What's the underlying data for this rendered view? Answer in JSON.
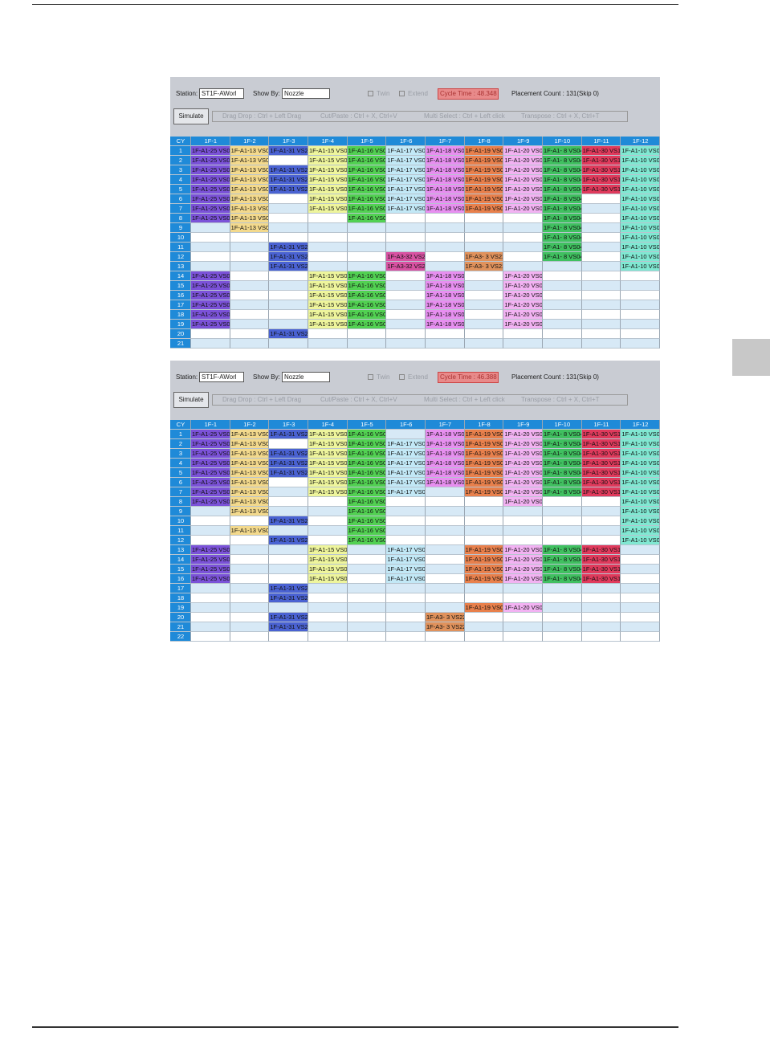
{
  "cell_colors": {
    "1F-A1-25 VS0(": "#7b52d8",
    "1F-A1-13 VS04": "#f3d98c",
    "1F-A1-31 VS2": "#4a62d2",
    "1F-A1-15 VS0(": "#eef59c",
    "1F-A1-16 VS0(": "#52d152",
    "1F-A1-17 VS0(": "#c2e8f6",
    "1F-A1-18 VS0(": "#e78ff0",
    "1F-A1-19 VS0(": "#e8804c",
    "1F-A1-20 VS0(": "#f2b2f2",
    "1F-A1- 8 VS04": "#40c060",
    "1F-A1-30 VS1": "#e03a5c",
    "1F-A1-10 VS0": "#80e8d2",
    "1F-A3-32 VS2": "#d852a2",
    "1F-A3- 3 VS22": "#e0925c"
  },
  "panels": [
    {
      "toolbar": {
        "station_label": "Station:",
        "station_value": "ST1F-AWorl",
        "show_by_label": "Show By:",
        "show_by_value": "Nozzle",
        "twin": "Twin",
        "extend": "Extend",
        "cycle_time": "Cycle Time : 48.348",
        "placement_count": "Placement Count : 131(Skip 0)",
        "simulate": "Simulate",
        "hints": [
          "Drag Drop : Ctrl + Left Drag",
          "Cut/Paste : Ctrl + X, Ctrl+V",
          "Multi Select : Ctrl + Left click",
          "Transpose : Ctrl + X, Ctrl+T"
        ]
      },
      "columns": [
        "CY",
        "1F-1",
        "1F-2",
        "1F-3",
        "1F-4",
        "1F-5",
        "1F-6",
        "1F-7",
        "1F-8",
        "1F-9",
        "1F-10",
        "1F-11",
        "1F-12"
      ],
      "rows": [
        {
          "cy": 1,
          "cells": [
            "1F-A1-25 VS0(",
            "1F-A1-13 VS04",
            "1F-A1-31 VS2",
            "1F-A1-15 VS0(",
            "1F-A1-16 VS0(",
            "1F-A1-17 VS0(",
            "1F-A1-18 VS0(",
            "1F-A1-19 VS0(",
            "1F-A1-20 VS0(",
            "1F-A1- 8 VS04",
            "1F-A1-30 VS1",
            "1F-A1-10 VS0"
          ]
        },
        {
          "cy": 2,
          "cells": [
            "1F-A1-25 VS0(",
            "1F-A1-13 VS04",
            null,
            "1F-A1-15 VS0(",
            "1F-A1-16 VS0(",
            "1F-A1-17 VS0(",
            "1F-A1-18 VS0(",
            "1F-A1-19 VS0(",
            "1F-A1-20 VS0(",
            "1F-A1- 8 VS04",
            "1F-A1-30 VS1",
            "1F-A1-10 VS0"
          ]
        },
        {
          "cy": 3,
          "cells": [
            "1F-A1-25 VS0(",
            "1F-A1-13 VS04",
            "1F-A1-31 VS2",
            "1F-A1-15 VS0(",
            "1F-A1-16 VS0(",
            "1F-A1-17 VS0(",
            "1F-A1-18 VS0(",
            "1F-A1-19 VS0(",
            "1F-A1-20 VS0(",
            "1F-A1- 8 VS04",
            "1F-A1-30 VS1",
            "1F-A1-10 VS0"
          ]
        },
        {
          "cy": 4,
          "cells": [
            "1F-A1-25 VS0(",
            "1F-A1-13 VS04",
            "1F-A1-31 VS2",
            "1F-A1-15 VS0(",
            "1F-A1-16 VS0(",
            "1F-A1-17 VS0(",
            "1F-A1-18 VS0(",
            "1F-A1-19 VS0(",
            "1F-A1-20 VS0(",
            "1F-A1- 8 VS04",
            "1F-A1-30 VS1",
            "1F-A1-10 VS0"
          ]
        },
        {
          "cy": 5,
          "cells": [
            "1F-A1-25 VS0(",
            "1F-A1-13 VS04",
            "1F-A1-31 VS2",
            "1F-A1-15 VS0(",
            "1F-A1-16 VS0(",
            "1F-A1-17 VS0(",
            "1F-A1-18 VS0(",
            "1F-A1-19 VS0(",
            "1F-A1-20 VS0(",
            "1F-A1- 8 VS04",
            "1F-A1-30 VS1",
            "1F-A1-10 VS0"
          ]
        },
        {
          "cy": 6,
          "cells": [
            "1F-A1-25 VS0(",
            "1F-A1-13 VS04",
            null,
            "1F-A1-15 VS0(",
            "1F-A1-16 VS0(",
            "1F-A1-17 VS0(",
            "1F-A1-18 VS0(",
            "1F-A1-19 VS0(",
            "1F-A1-20 VS0(",
            "1F-A1- 8 VS04",
            null,
            "1F-A1-10 VS0"
          ]
        },
        {
          "cy": 7,
          "cells": [
            "1F-A1-25 VS0(",
            "1F-A1-13 VS04",
            null,
            "1F-A1-15 VS0(",
            "1F-A1-16 VS0(",
            "1F-A1-17 VS0(",
            "1F-A1-18 VS0(",
            "1F-A1-19 VS0(",
            "1F-A1-20 VS0(",
            "1F-A1- 8 VS04",
            null,
            "1F-A1-10 VS0"
          ]
        },
        {
          "cy": 8,
          "cells": [
            "1F-A1-25 VS0(",
            "1F-A1-13 VS04",
            null,
            null,
            "1F-A1-16 VS0(",
            null,
            null,
            null,
            null,
            "1F-A1- 8 VS04",
            null,
            "1F-A1-10 VS0"
          ]
        },
        {
          "cy": 9,
          "cells": [
            null,
            "1F-A1-13 VS04",
            null,
            null,
            null,
            null,
            null,
            null,
            null,
            "1F-A1- 8 VS04",
            null,
            "1F-A1-10 VS0"
          ]
        },
        {
          "cy": 10,
          "cells": [
            null,
            null,
            null,
            null,
            null,
            null,
            null,
            null,
            null,
            "1F-A1- 8 VS04",
            null,
            "1F-A1-10 VS0"
          ]
        },
        {
          "cy": 11,
          "cells": [
            null,
            null,
            "1F-A1-31 VS2",
            null,
            null,
            null,
            null,
            null,
            null,
            "1F-A1- 8 VS04",
            null,
            "1F-A1-10 VS0"
          ]
        },
        {
          "cy": 12,
          "cells": [
            null,
            null,
            "1F-A1-31 VS2",
            null,
            null,
            "1F-A3-32 VS2",
            null,
            "1F-A3- 3 VS22",
            null,
            "1F-A1- 8 VS04",
            null,
            "1F-A1-10 VS0"
          ]
        },
        {
          "cy": 13,
          "cells": [
            null,
            null,
            "1F-A1-31 VS2",
            null,
            null,
            "1F-A3-32 VS2",
            null,
            "1F-A3- 3 VS22",
            null,
            null,
            null,
            "1F-A1-10 VS0"
          ]
        },
        {
          "cy": 14,
          "cells": [
            "1F-A1-25 VS0(",
            null,
            null,
            "1F-A1-15 VS0(",
            "1F-A1-16 VS0(",
            null,
            "1F-A1-18 VS0(",
            null,
            "1F-A1-20 VS0(",
            null,
            null,
            null
          ]
        },
        {
          "cy": 15,
          "cells": [
            "1F-A1-25 VS0(",
            null,
            null,
            "1F-A1-15 VS0(",
            "1F-A1-16 VS0(",
            null,
            "1F-A1-18 VS0(",
            null,
            "1F-A1-20 VS0(",
            null,
            null,
            null
          ]
        },
        {
          "cy": 16,
          "cells": [
            "1F-A1-25 VS0(",
            null,
            null,
            "1F-A1-15 VS0(",
            "1F-A1-16 VS0(",
            null,
            "1F-A1-18 VS0(",
            null,
            "1F-A1-20 VS0(",
            null,
            null,
            null
          ]
        },
        {
          "cy": 17,
          "cells": [
            "1F-A1-25 VS0(",
            null,
            null,
            "1F-A1-15 VS0(",
            "1F-A1-16 VS0(",
            null,
            "1F-A1-18 VS0(",
            null,
            "1F-A1-20 VS0(",
            null,
            null,
            null
          ]
        },
        {
          "cy": 18,
          "cells": [
            "1F-A1-25 VS0(",
            null,
            null,
            "1F-A1-15 VS0(",
            "1F-A1-16 VS0(",
            null,
            "1F-A1-18 VS0(",
            null,
            "1F-A1-20 VS0(",
            null,
            null,
            null
          ]
        },
        {
          "cy": 19,
          "cells": [
            "1F-A1-25 VS0(",
            null,
            null,
            "1F-A1-15 VS0(",
            "1F-A1-16 VS0(",
            null,
            "1F-A1-18 VS0(",
            null,
            "1F-A1-20 VS0(",
            null,
            null,
            null
          ]
        },
        {
          "cy": 20,
          "cells": [
            null,
            null,
            "1F-A1-31 VS2",
            null,
            null,
            null,
            null,
            null,
            null,
            null,
            null,
            null
          ]
        },
        {
          "cy": 21,
          "cells": [
            null,
            null,
            null,
            null,
            null,
            null,
            null,
            null,
            null,
            null,
            null,
            null
          ]
        }
      ]
    },
    {
      "toolbar": {
        "station_label": "Station:",
        "station_value": "ST1F-AWorl",
        "show_by_label": "Show By:",
        "show_by_value": "Nozzle",
        "twin": "Twin",
        "extend": "Extend",
        "cycle_time": "Cycle Time : 46.388",
        "placement_count": "Placement Count : 131(Skip 0)",
        "simulate": "Simulate",
        "hints": [
          "Drag Drop : Ctrl + Left Drag",
          "Cut/Paste : Ctrl + X, Ctrl+V",
          "Multi Select : Ctrl + Left click",
          "Transpose : Ctrl + X, Ctrl+T"
        ]
      },
      "columns": [
        "CY",
        "1F-1",
        "1F-2",
        "1F-3",
        "1F-4",
        "1F-5",
        "1F-6",
        "1F-7",
        "1F-8",
        "1F-9",
        "1F-10",
        "1F-11",
        "1F-12"
      ],
      "rows": [
        {
          "cy": 1,
          "cells": [
            "1F-A1-25 VS0(",
            "1F-A1-13 VS04",
            "1F-A1-31 VS2",
            "1F-A1-15 VS0(",
            "1F-A1-16 VS0(",
            null,
            "1F-A1-18 VS0(",
            "1F-A1-19 VS0(",
            "1F-A1-20 VS0(",
            "1F-A1- 8 VS04",
            "1F-A1-30 VS1",
            "1F-A1-10 VS0"
          ]
        },
        {
          "cy": 2,
          "cells": [
            "1F-A1-25 VS0(",
            "1F-A1-13 VS04",
            null,
            "1F-A1-15 VS0(",
            "1F-A1-16 VS0(",
            "1F-A1-17 VS0(",
            "1F-A1-18 VS0(",
            "1F-A1-19 VS0(",
            "1F-A1-20 VS0(",
            "1F-A1- 8 VS04",
            "1F-A1-30 VS1",
            "1F-A1-10 VS0"
          ]
        },
        {
          "cy": 3,
          "cells": [
            "1F-A1-25 VS0(",
            "1F-A1-13 VS04",
            "1F-A1-31 VS2",
            "1F-A1-15 VS0(",
            "1F-A1-16 VS0(",
            "1F-A1-17 VS0(",
            "1F-A1-18 VS0(",
            "1F-A1-19 VS0(",
            "1F-A1-20 VS0(",
            "1F-A1- 8 VS04",
            "1F-A1-30 VS1",
            "1F-A1-10 VS0"
          ]
        },
        {
          "cy": 4,
          "cells": [
            "1F-A1-25 VS0(",
            "1F-A1-13 VS04",
            "1F-A1-31 VS2",
            "1F-A1-15 VS0(",
            "1F-A1-16 VS0(",
            "1F-A1-17 VS0(",
            "1F-A1-18 VS0(",
            "1F-A1-19 VS0(",
            "1F-A1-20 VS0(",
            "1F-A1- 8 VS04",
            "1F-A1-30 VS1",
            "1F-A1-10 VS0"
          ]
        },
        {
          "cy": 5,
          "cells": [
            "1F-A1-25 VS0(",
            "1F-A1-13 VS04",
            "1F-A1-31 VS2",
            "1F-A1-15 VS0(",
            "1F-A1-16 VS0(",
            "1F-A1-17 VS0(",
            "1F-A1-18 VS0(",
            "1F-A1-19 VS0(",
            "1F-A1-20 VS0(",
            "1F-A1- 8 VS04",
            "1F-A1-30 VS1",
            "1F-A1-10 VS0"
          ]
        },
        {
          "cy": 6,
          "cells": [
            "1F-A1-25 VS0(",
            "1F-A1-13 VS04",
            null,
            "1F-A1-15 VS0(",
            "1F-A1-16 VS0(",
            "1F-A1-17 VS0(",
            "1F-A1-18 VS0(",
            "1F-A1-19 VS0(",
            "1F-A1-20 VS0(",
            "1F-A1- 8 VS04",
            "1F-A1-30 VS1",
            "1F-A1-10 VS0"
          ]
        },
        {
          "cy": 7,
          "cells": [
            "1F-A1-25 VS0(",
            "1F-A1-13 VS04",
            null,
            "1F-A1-15 VS0(",
            "1F-A1-16 VS0(",
            "1F-A1-17 VS0(",
            null,
            "1F-A1-19 VS0(",
            "1F-A1-20 VS0(",
            "1F-A1- 8 VS04",
            "1F-A1-30 VS1",
            "1F-A1-10 VS0"
          ]
        },
        {
          "cy": 8,
          "cells": [
            "1F-A1-25 VS0(",
            "1F-A1-13 VS04",
            null,
            null,
            "1F-A1-16 VS0(",
            null,
            null,
            null,
            "1F-A1-20 VS0(",
            null,
            null,
            "1F-A1-10 VS0"
          ]
        },
        {
          "cy": 9,
          "cells": [
            null,
            "1F-A1-13 VS04",
            null,
            null,
            "1F-A1-16 VS0(",
            null,
            null,
            null,
            null,
            null,
            null,
            "1F-A1-10 VS0"
          ]
        },
        {
          "cy": 10,
          "cells": [
            null,
            null,
            "1F-A1-31 VS2",
            null,
            "1F-A1-16 VS0(",
            null,
            null,
            null,
            null,
            null,
            null,
            "1F-A1-10 VS0"
          ]
        },
        {
          "cy": 11,
          "cells": [
            null,
            "1F-A1-13 VS04",
            null,
            null,
            "1F-A1-16 VS0(",
            null,
            null,
            null,
            null,
            null,
            null,
            "1F-A1-10 VS0"
          ]
        },
        {
          "cy": 12,
          "cells": [
            null,
            null,
            "1F-A1-31 VS2",
            null,
            "1F-A1-16 VS0(",
            null,
            null,
            null,
            null,
            null,
            null,
            "1F-A1-10 VS0"
          ]
        },
        {
          "cy": 13,
          "cells": [
            "1F-A1-25 VS0(",
            null,
            null,
            "1F-A1-15 VS0(",
            null,
            "1F-A1-17 VS0(",
            null,
            "1F-A1-19 VS0(",
            "1F-A1-20 VS0(",
            "1F-A1- 8 VS04",
            "1F-A1-30 VS1",
            null
          ]
        },
        {
          "cy": 14,
          "cells": [
            "1F-A1-25 VS0(",
            null,
            null,
            "1F-A1-15 VS0(",
            null,
            "1F-A1-17 VS0(",
            null,
            "1F-A1-19 VS0(",
            "1F-A1-20 VS0(",
            "1F-A1- 8 VS04",
            "1F-A1-30 VS1",
            null
          ]
        },
        {
          "cy": 15,
          "cells": [
            "1F-A1-25 VS0(",
            null,
            null,
            "1F-A1-15 VS0(",
            null,
            "1F-A1-17 VS0(",
            null,
            "1F-A1-19 VS0(",
            "1F-A1-20 VS0(",
            "1F-A1- 8 VS04",
            "1F-A1-30 VS1",
            null
          ]
        },
        {
          "cy": 16,
          "cells": [
            "1F-A1-25 VS0(",
            null,
            null,
            "1F-A1-15 VS0(",
            null,
            "1F-A1-17 VS0(",
            null,
            "1F-A1-19 VS0(",
            "1F-A1-20 VS0(",
            "1F-A1- 8 VS04",
            "1F-A1-30 VS1",
            null
          ]
        },
        {
          "cy": 17,
          "cells": [
            null,
            null,
            "1F-A1-31 VS2",
            null,
            null,
            null,
            null,
            null,
            null,
            null,
            null,
            null
          ]
        },
        {
          "cy": 18,
          "cells": [
            null,
            null,
            "1F-A1-31 VS2",
            null,
            null,
            null,
            null,
            null,
            null,
            null,
            null,
            null
          ]
        },
        {
          "cy": 19,
          "cells": [
            null,
            null,
            null,
            null,
            null,
            null,
            null,
            "1F-A1-19 VS0(",
            "1F-A1-20 VS0(",
            null,
            null,
            null
          ]
        },
        {
          "cy": 20,
          "cells": [
            null,
            null,
            "1F-A1-31 VS2",
            null,
            null,
            null,
            "1F-A3- 3 VS22",
            null,
            null,
            null,
            null,
            null
          ]
        },
        {
          "cy": 21,
          "cells": [
            null,
            null,
            "1F-A1-31 VS2",
            null,
            null,
            null,
            "1F-A3- 3 VS22",
            null,
            null,
            null,
            null,
            null
          ]
        },
        {
          "cy": 22,
          "cells": [
            null,
            null,
            null,
            null,
            null,
            null,
            null,
            null,
            null,
            null,
            null,
            null
          ]
        }
      ]
    }
  ]
}
